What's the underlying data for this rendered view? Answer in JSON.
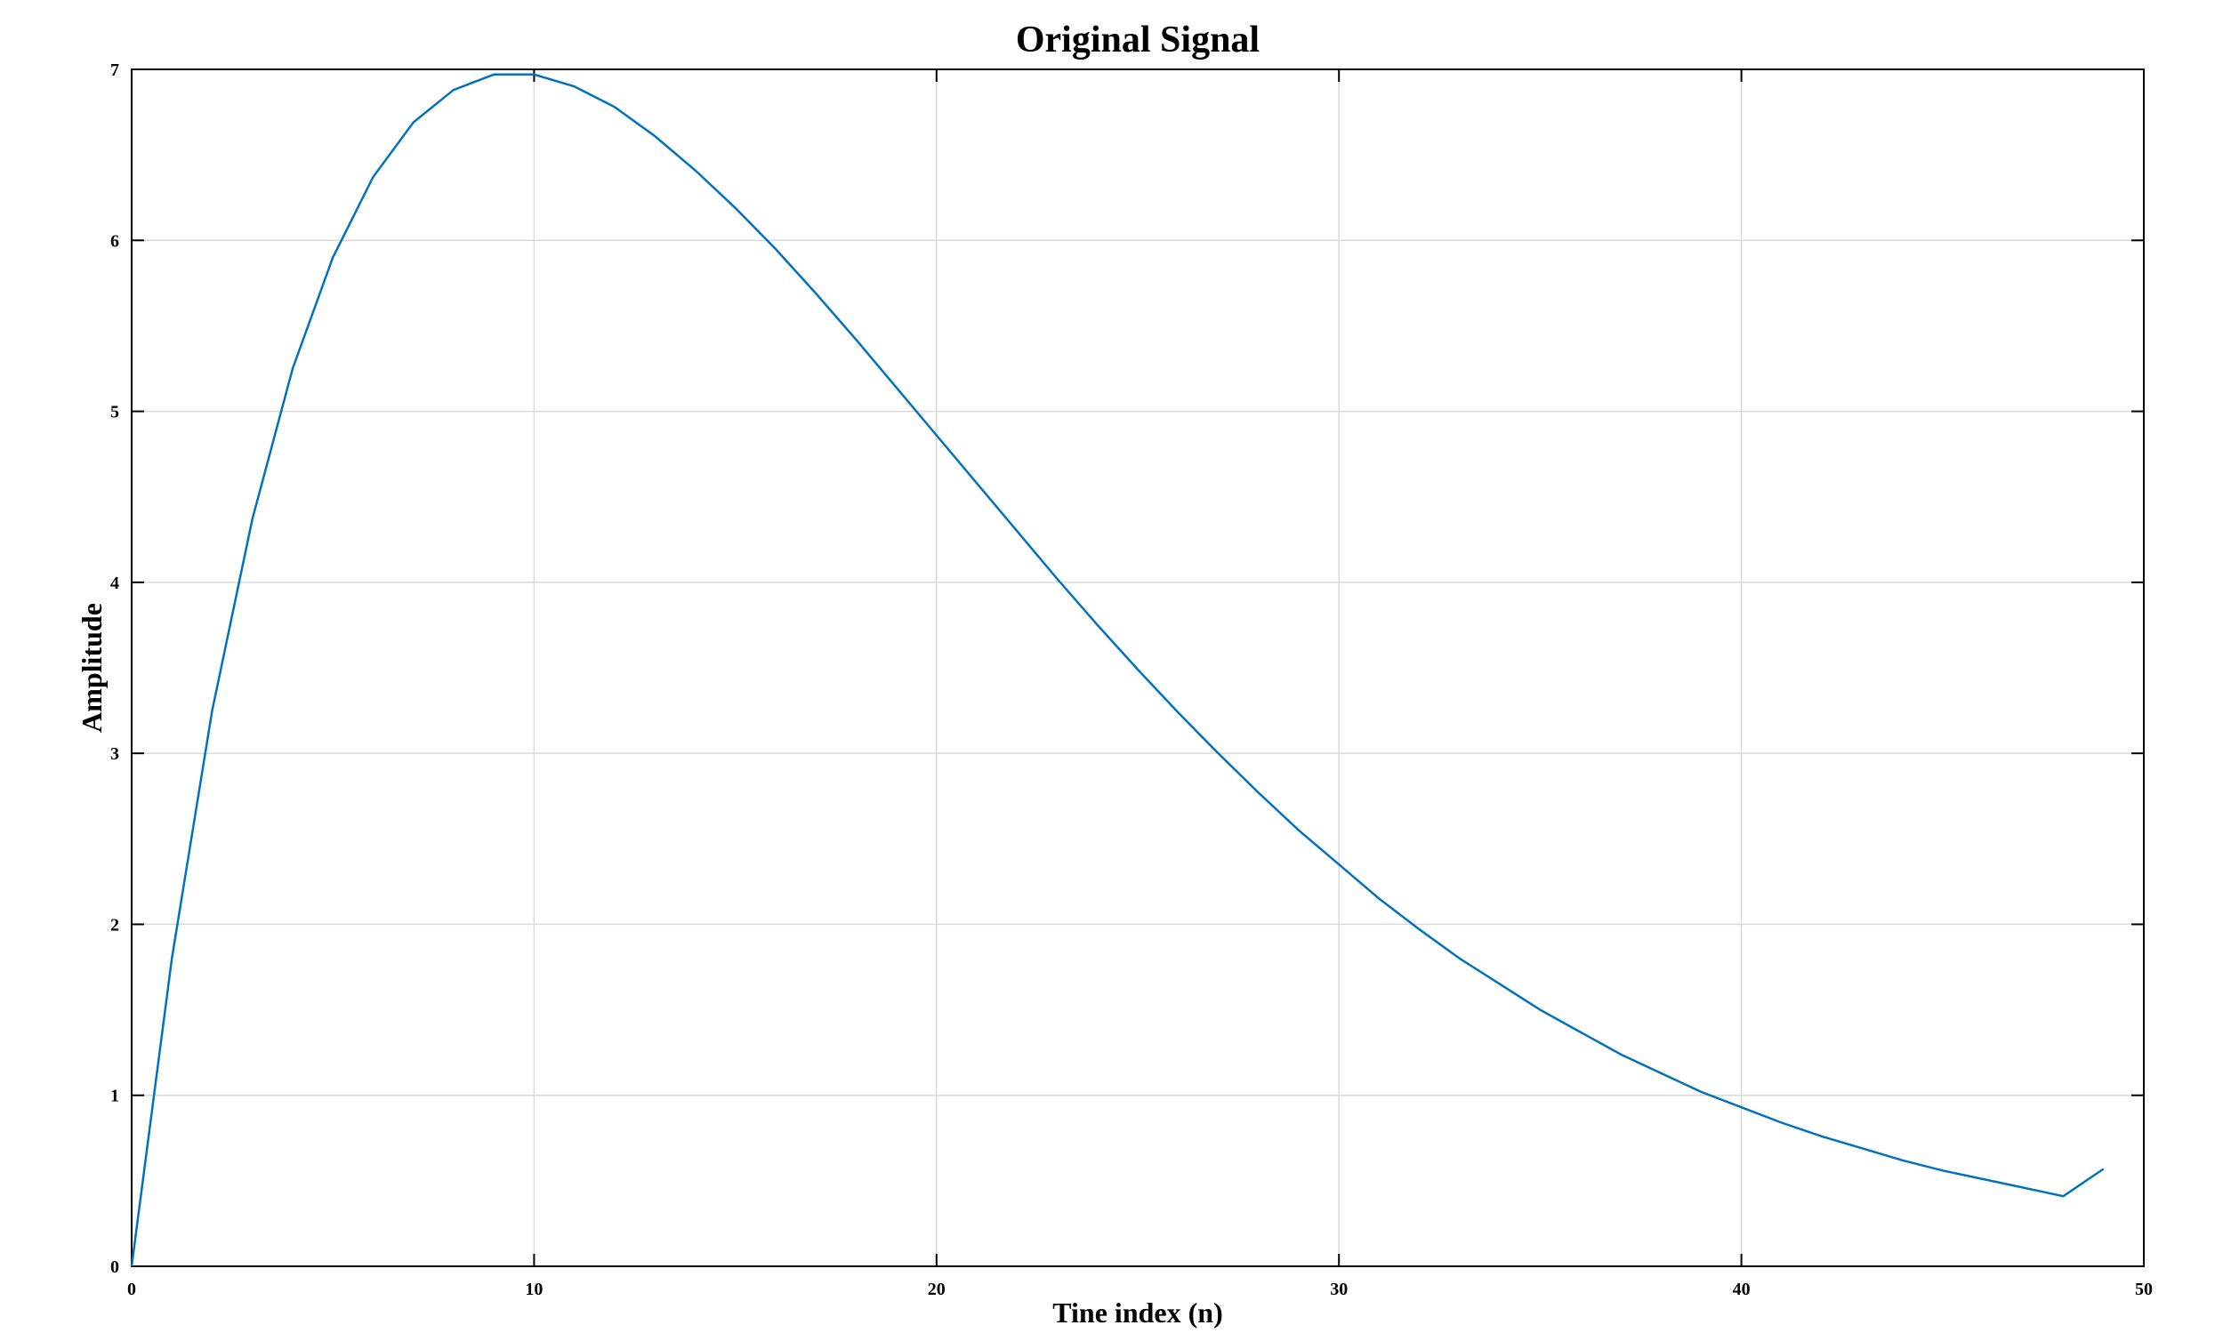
{
  "chart_data": {
    "type": "line",
    "title": "Original Signal",
    "xlabel": "Tine index (n)",
    "ylabel": "Amplitude",
    "xlim": [
      0,
      50
    ],
    "ylim": [
      0,
      7
    ],
    "xticks": [
      0,
      10,
      20,
      30,
      40,
      50
    ],
    "yticks": [
      0,
      1,
      2,
      3,
      4,
      5,
      6,
      7
    ],
    "grid": true,
    "line_color": "#0072BD",
    "series": [
      {
        "x": [
          0,
          1,
          2,
          3,
          4,
          5,
          6,
          7,
          8,
          9,
          10,
          11,
          12,
          13,
          14,
          15,
          16,
          17,
          18,
          19,
          20,
          21,
          22,
          23,
          24,
          25,
          26,
          27,
          28,
          29,
          30,
          31,
          32,
          33,
          34,
          35,
          36,
          37,
          38,
          39,
          40,
          41,
          42,
          43,
          44,
          45,
          46,
          47,
          48,
          49
        ],
        "values": [
          0,
          1.8,
          3.25,
          4.37,
          5.25,
          5.9,
          6.37,
          6.69,
          6.88,
          6.97,
          6.97,
          6.9,
          6.78,
          6.61,
          6.41,
          6.19,
          5.95,
          5.69,
          5.42,
          5.14,
          4.86,
          4.58,
          4.3,
          4.02,
          3.75,
          3.49,
          3.24,
          3.0,
          2.77,
          2.55,
          2.35,
          2.15,
          1.97,
          1.8,
          1.65,
          1.5,
          1.37,
          1.24,
          1.13,
          1.02,
          0.93,
          0.84,
          0.76,
          0.69,
          0.62,
          0.56,
          0.51,
          0.46,
          0.41,
          0.57
        ]
      }
    ]
  }
}
